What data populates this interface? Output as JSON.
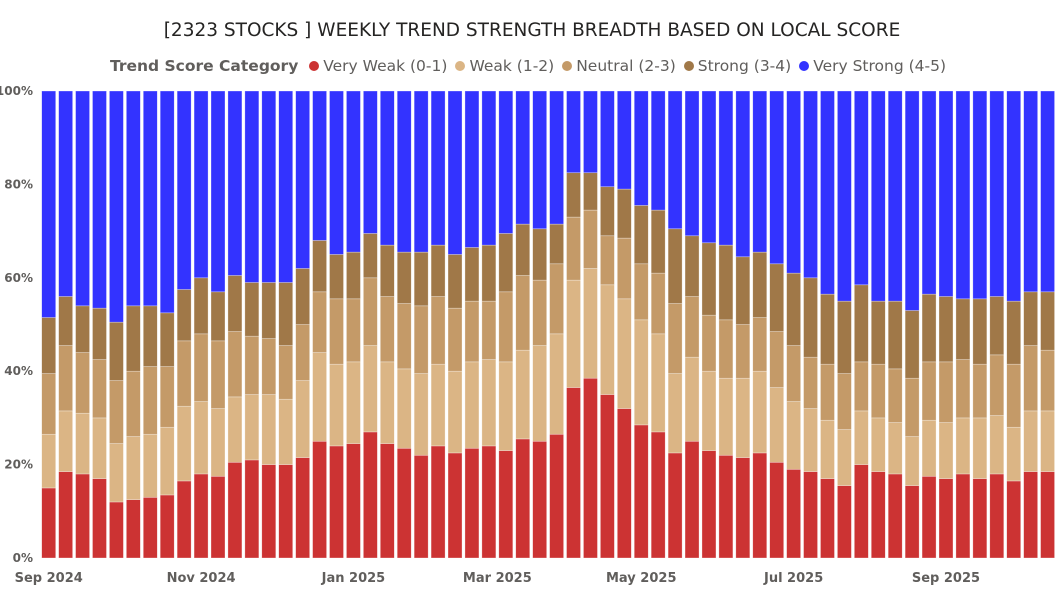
{
  "chart_data": {
    "type": "bar",
    "stacked": "percent",
    "title": "[2323 STOCKS ] WEEKLY TREND STRENGTH BREADTH BASED ON LOCAL SCORE",
    "legend_title": "Trend Score Category",
    "legend_position": "top",
    "xlabel": "",
    "ylabel": "",
    "ylim": [
      0,
      100
    ],
    "y_ticks": [
      "0%",
      "20%",
      "40%",
      "60%",
      "80%",
      "100%"
    ],
    "x_ticks": [
      {
        "index": 0,
        "label": "Sep 2024"
      },
      {
        "index": 9,
        "label": "Nov 2024"
      },
      {
        "index": 18,
        "label": "Jan 2025"
      },
      {
        "index": 26.5,
        "label": "Mar 2025"
      },
      {
        "index": 35,
        "label": "May 2025"
      },
      {
        "index": 44,
        "label": "Jul 2025"
      },
      {
        "index": 53,
        "label": "Sep 2025"
      }
    ],
    "category_count": 60,
    "series": [
      {
        "name": "Very Weak (0-1)",
        "color": "#cc3333",
        "values": [
          15,
          18.5,
          18,
          17,
          12,
          12.5,
          13,
          13.5,
          16.5,
          18,
          17.5,
          20.5,
          21,
          20,
          20,
          21.5,
          25,
          24,
          24.5,
          27,
          24.5,
          23.5,
          22,
          24,
          22.5,
          23.5,
          24,
          23,
          25.5,
          25,
          26.5,
          36.5,
          38.5,
          35,
          32,
          28.5,
          27,
          22.5,
          25,
          23,
          22,
          21.5,
          22.5,
          20.5,
          19,
          18.5,
          17,
          15.5,
          20,
          18.5,
          18,
          15.5,
          17.5,
          17,
          18,
          17,
          18,
          16.5,
          18.5,
          18.5
        ]
      },
      {
        "name": "Weak (1-2)",
        "color": "#dbb585",
        "values": [
          11.5,
          13,
          13,
          13,
          12.5,
          13.5,
          13.5,
          14.5,
          16,
          15.5,
          14.5,
          14,
          14,
          15,
          14,
          16.5,
          19,
          17.5,
          17.5,
          18.5,
          17.5,
          17,
          17.5,
          17.5,
          17.5,
          18.5,
          18.5,
          19,
          19,
          20.5,
          21.5,
          23,
          23.5,
          23.5,
          23.5,
          22.5,
          21,
          17,
          18,
          17,
          16.5,
          17,
          17.5,
          16,
          14.5,
          13.5,
          12.5,
          12,
          11.5,
          11.5,
          11,
          10.5,
          12,
          12,
          12,
          13,
          12.5,
          11.5,
          13,
          13
        ]
      },
      {
        "name": "Neutral (2-3)",
        "color": "#c49a68",
        "values": [
          13,
          14,
          13,
          12.5,
          13.5,
          14,
          14.5,
          13,
          14,
          14.5,
          14.5,
          14,
          12.5,
          12,
          11.5,
          12,
          13,
          14,
          13.5,
          14.5,
          14,
          14,
          14.5,
          14.5,
          13.5,
          13,
          12.5,
          15,
          16,
          14,
          15,
          13.5,
          12.5,
          10.5,
          13,
          12,
          13,
          15,
          13,
          12,
          12.5,
          11.5,
          11.5,
          12,
          12,
          11,
          12,
          12,
          10.5,
          11.5,
          11.5,
          12.5,
          12.5,
          13,
          12.5,
          11.5,
          13,
          13.5,
          14,
          13
        ]
      },
      {
        "name": "Strong (3-4)",
        "color": "#a07848",
        "values": [
          12,
          10.5,
          10,
          11,
          12.5,
          14,
          13,
          11.5,
          11,
          12,
          10.5,
          12,
          11.5,
          12,
          13.5,
          12,
          11,
          9.5,
          10,
          9.5,
          11,
          11,
          11.5,
          11,
          11.5,
          11.5,
          12,
          12.5,
          11,
          11,
          8.5,
          9.5,
          8,
          10.5,
          10.5,
          12.5,
          13.5,
          16,
          13,
          15.5,
          16,
          14.5,
          14,
          14.5,
          15.5,
          17,
          15,
          15.5,
          16.5,
          13.5,
          14.5,
          14.5,
          14.5,
          14,
          13,
          14,
          12.5,
          13.5,
          11.5,
          12.5
        ]
      },
      {
        "name": "Very Strong (4-5)",
        "color": "#3333ff",
        "values": [
          48.5,
          44,
          46,
          46.5,
          49.5,
          46,
          46,
          47.5,
          42.5,
          40,
          43,
          39.5,
          41,
          41,
          41,
          38,
          32,
          35,
          34.5,
          30.5,
          33,
          34.5,
          34.5,
          33,
          35,
          33.5,
          33,
          30.5,
          28.5,
          29.5,
          28.5,
          17.5,
          17.5,
          20.5,
          21,
          24.5,
          25.5,
          29.5,
          31,
          32.5,
          33,
          35.5,
          34.5,
          37,
          39,
          40,
          43.5,
          45,
          41.5,
          45,
          45,
          47,
          43.5,
          44,
          44.5,
          44.5,
          44,
          45,
          43,
          43
        ]
      }
    ]
  }
}
